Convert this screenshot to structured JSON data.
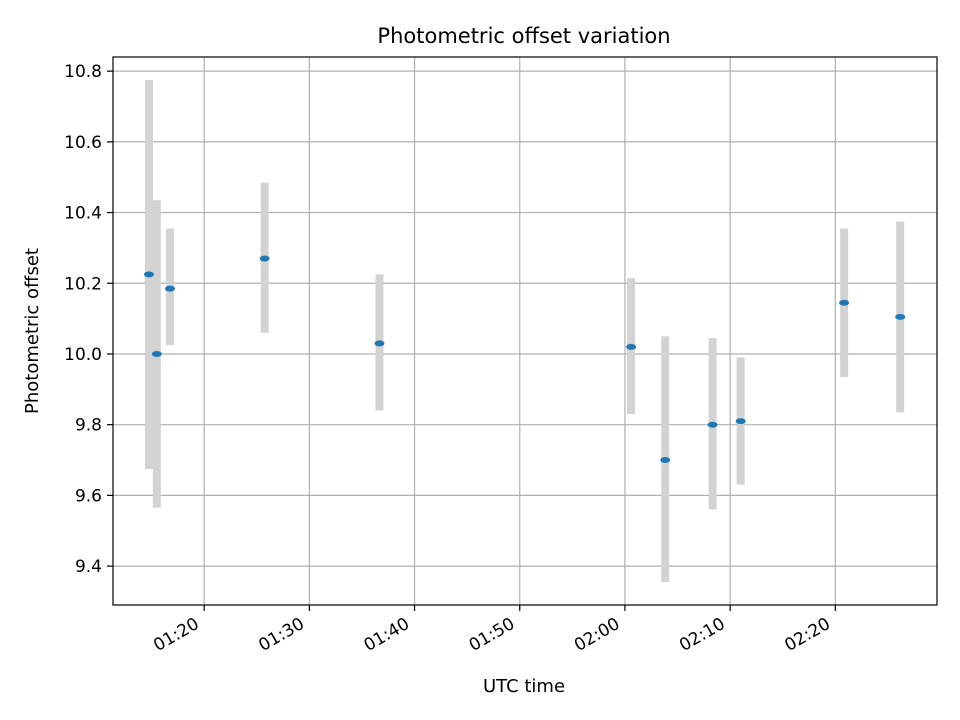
{
  "chart_data": {
    "type": "scatter",
    "title": "Photometric offset variation",
    "xlabel": "UTC time",
    "ylabel": "Photometric offset",
    "x_axis_kind": "time (UTC)",
    "xlim": [
      "01:11:20",
      "02:29:40"
    ],
    "ylim": [
      9.29,
      10.84
    ],
    "x_ticks": [
      "01:20",
      "01:30",
      "01:40",
      "01:50",
      "02:00",
      "02:10",
      "02:20"
    ],
    "y_ticks": [
      "9.4",
      "9.6",
      "9.8",
      "10.0",
      "10.2",
      "10.4",
      "10.6",
      "10.8"
    ],
    "grid": true,
    "legend": "none",
    "marker_color": "#1f77b4",
    "errorbar_color": "#d3d3d3",
    "points": [
      {
        "x": "01:14:45",
        "y": 10.225,
        "ylow": 9.675,
        "yhigh": 10.775
      },
      {
        "x": "01:15:30",
        "y": 10.0,
        "ylow": 9.565,
        "yhigh": 10.435
      },
      {
        "x": "01:16:45",
        "y": 10.185,
        "ylow": 10.025,
        "yhigh": 10.355
      },
      {
        "x": "01:25:45",
        "y": 10.27,
        "ylow": 10.06,
        "yhigh": 10.485
      },
      {
        "x": "01:36:40",
        "y": 10.03,
        "ylow": 9.84,
        "yhigh": 10.225
      },
      {
        "x": "02:00:35",
        "y": 10.02,
        "ylow": 9.83,
        "yhigh": 10.215
      },
      {
        "x": "02:03:50",
        "y": 9.7,
        "ylow": 9.355,
        "yhigh": 10.05
      },
      {
        "x": "02:08:20",
        "y": 9.8,
        "ylow": 9.56,
        "yhigh": 10.045
      },
      {
        "x": "02:11:00",
        "y": 9.81,
        "ylow": 9.63,
        "yhigh": 9.99
      },
      {
        "x": "02:20:50",
        "y": 10.145,
        "ylow": 9.935,
        "yhigh": 10.355
      },
      {
        "x": "02:26:10",
        "y": 10.105,
        "ylow": 9.835,
        "yhigh": 10.375
      }
    ]
  }
}
